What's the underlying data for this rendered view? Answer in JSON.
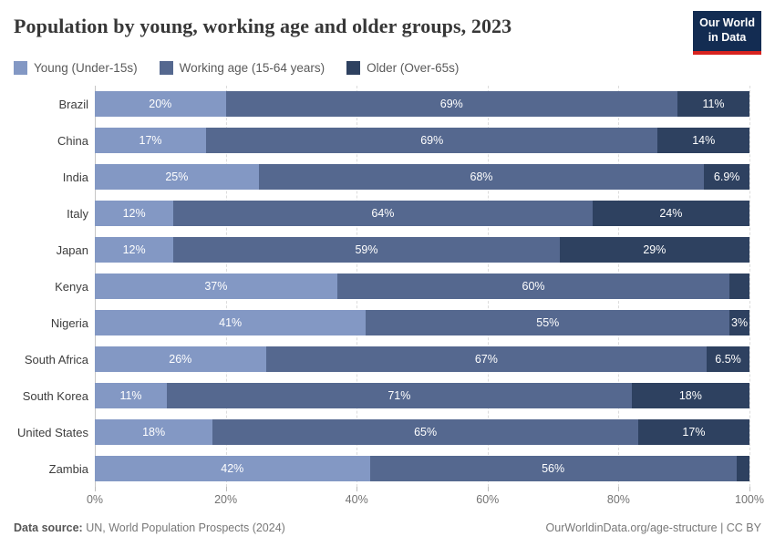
{
  "header": {
    "title": "Population by young, working age and older groups, 2023",
    "logo": {
      "line1": "Our World",
      "line2": "in Data"
    }
  },
  "legend": [
    {
      "label": "Young (Under-15s)",
      "color": "#8398c4"
    },
    {
      "label": "Working age (15-64 years)",
      "color": "#55688f"
    },
    {
      "label": "Older (Over-65s)",
      "color": "#2e4160"
    }
  ],
  "chart_data": {
    "type": "bar",
    "stacked": true,
    "orientation": "horizontal",
    "title": "Population by young, working age and older groups, 2023",
    "categories": [
      "Brazil",
      "China",
      "India",
      "Italy",
      "Japan",
      "Kenya",
      "Nigeria",
      "South Africa",
      "South Korea",
      "United States",
      "Zambia"
    ],
    "series": [
      {
        "name": "Young (Under-15s)",
        "color": "#8398c4",
        "values": [
          20,
          17,
          25,
          12,
          12,
          37,
          41,
          26,
          11,
          18,
          42
        ],
        "labels": [
          "20%",
          "17%",
          "25%",
          "12%",
          "12%",
          "37%",
          "41%",
          "26%",
          "11%",
          "18%",
          "42%"
        ]
      },
      {
        "name": "Working age (15-64 years)",
        "color": "#55688f",
        "values": [
          69,
          69,
          68,
          64,
          59,
          60,
          55,
          67,
          71,
          65,
          56
        ],
        "labels": [
          "69%",
          "69%",
          "68%",
          "64%",
          "59%",
          "60%",
          "55%",
          "67%",
          "71%",
          "65%",
          "56%"
        ]
      },
      {
        "name": "Older (Over-65s)",
        "color": "#2e4160",
        "values": [
          11,
          14,
          6.9,
          24,
          29,
          3,
          3,
          6.5,
          18,
          17,
          2
        ],
        "labels": [
          "11%",
          "14%",
          "6.9%",
          "24%",
          "29%",
          "",
          "3%",
          "6.5%",
          "18%",
          "17%",
          ""
        ]
      }
    ],
    "xlim": [
      0,
      100
    ],
    "x_ticks": [
      "0%",
      "20%",
      "40%",
      "60%",
      "80%",
      "100%"
    ],
    "x_tick_values": [
      0,
      20,
      40,
      60,
      80,
      100
    ],
    "grid": "vertical-dashed",
    "legend_position": "top"
  },
  "footer": {
    "source_label": "Data source:",
    "source_text": " UN, World Population Prospects (2024)",
    "right_text": "OurWorldinData.org/age-structure | CC BY"
  }
}
